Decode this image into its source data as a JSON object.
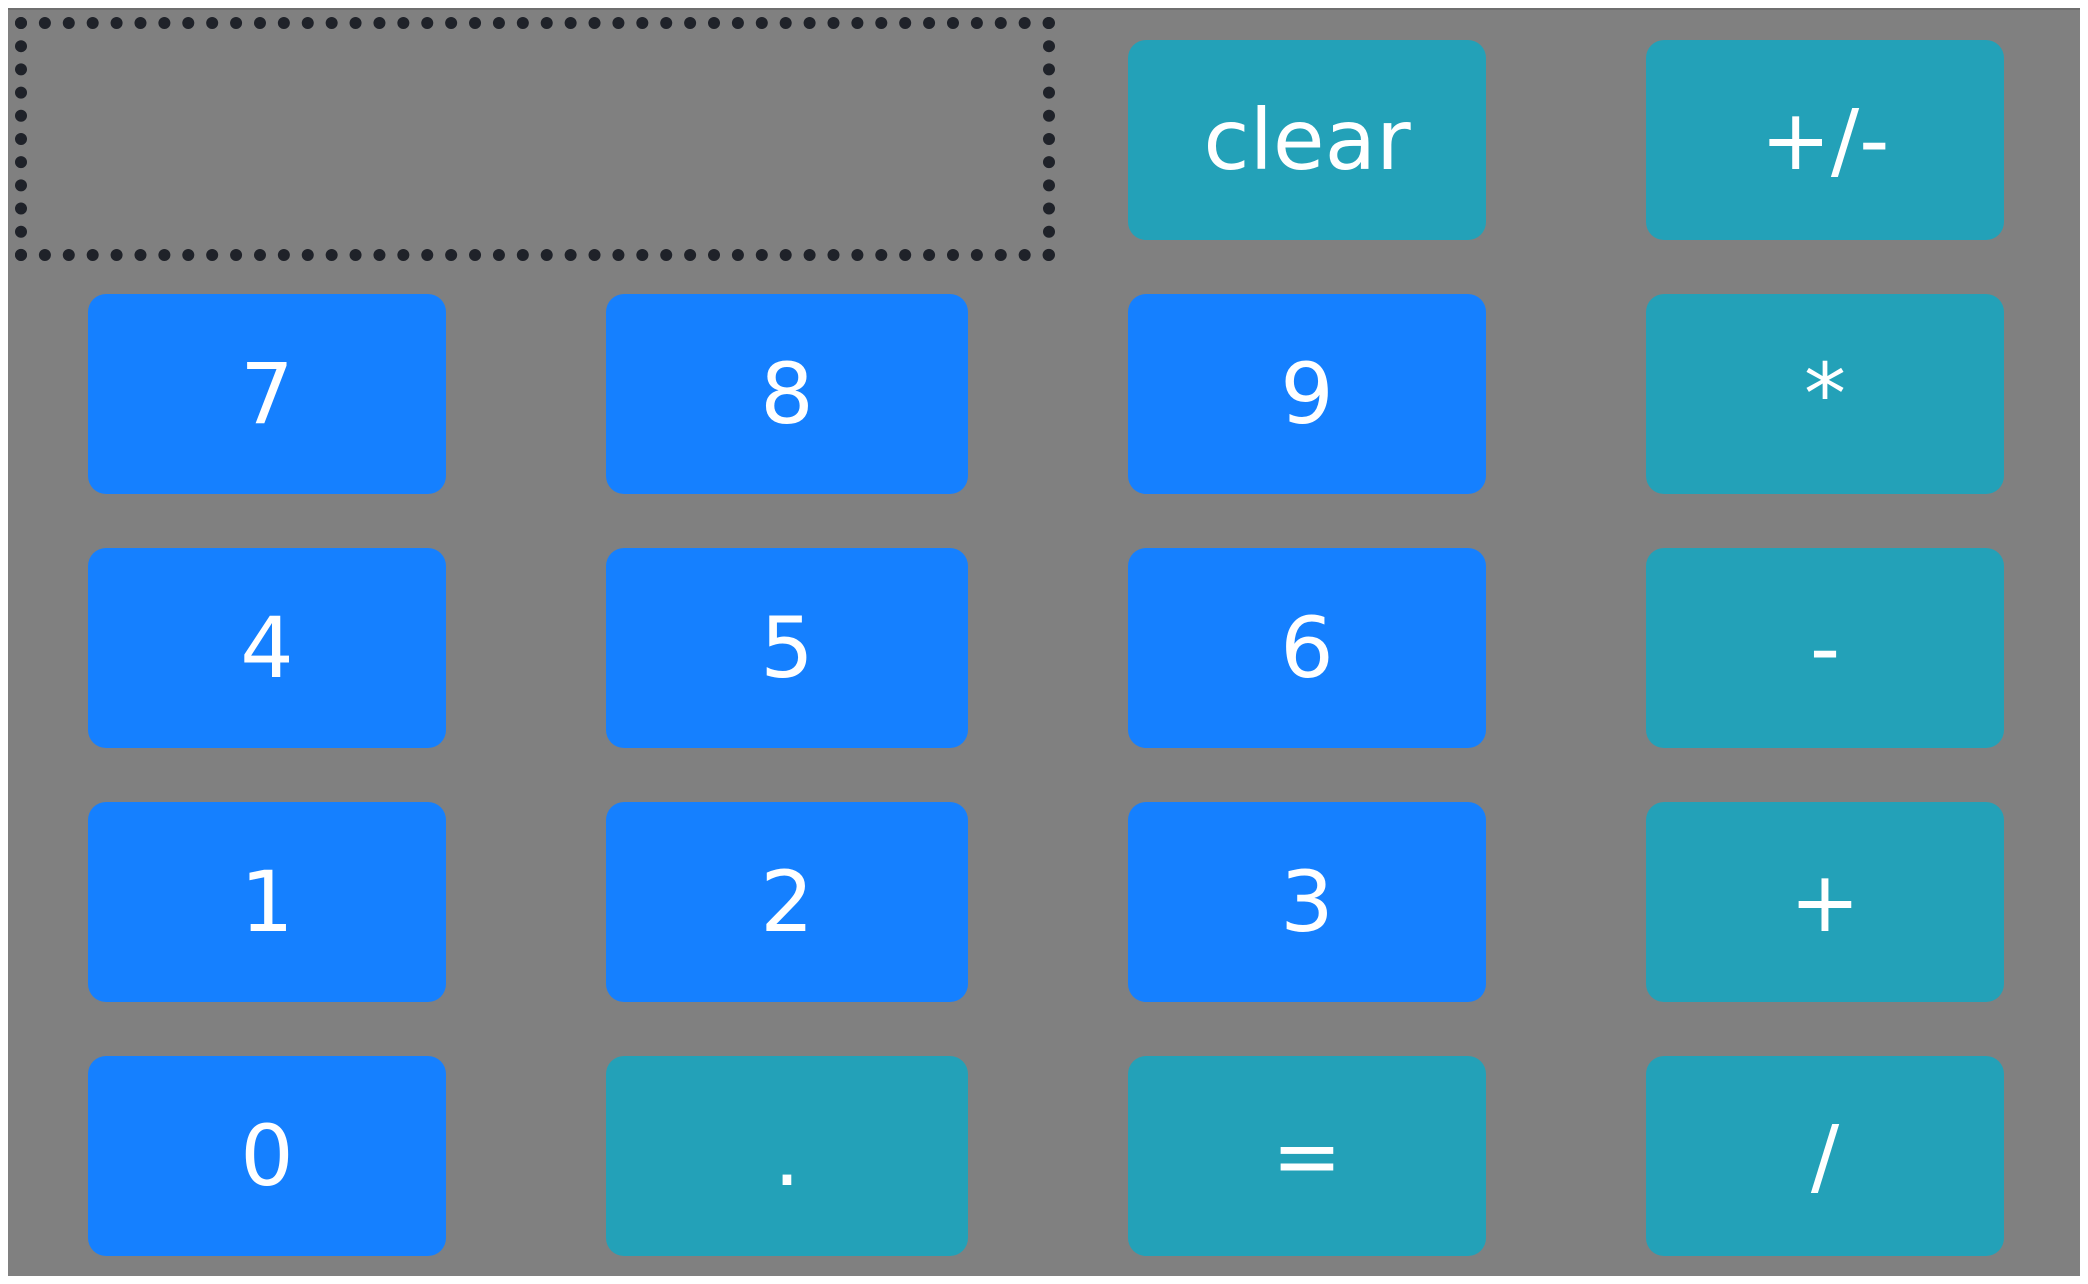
{
  "display": {
    "value": ""
  },
  "buttons": {
    "clear": "clear",
    "negate": "+/-",
    "seven": "7",
    "eight": "8",
    "nine": "9",
    "multiply": "*",
    "four": "4",
    "five": "5",
    "six": "6",
    "subtract": "-",
    "one": "1",
    "two": "2",
    "three": "3",
    "add": "+",
    "zero": "0",
    "decimal": ".",
    "equals": "=",
    "divide": "/"
  },
  "colors": {
    "number_button": "#1580ff",
    "operator_button": "#23a1b8",
    "background": "#808080",
    "display_border": "#1f2229"
  }
}
